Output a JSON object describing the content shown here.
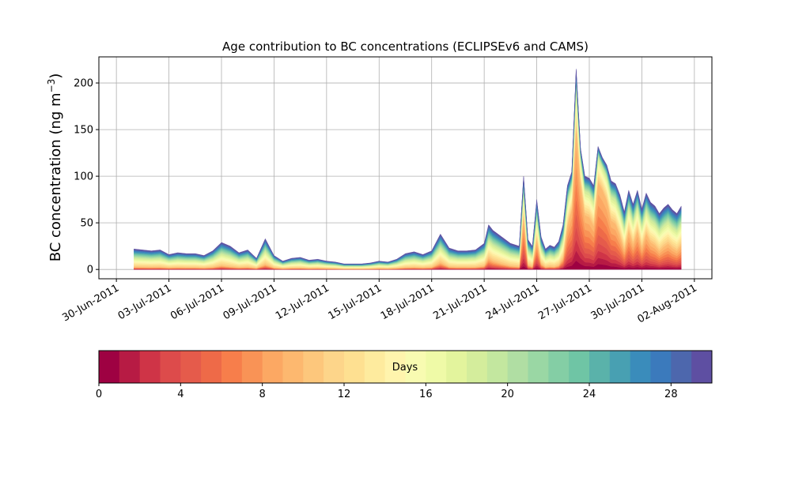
{
  "chart_data": {
    "type": "area",
    "title": "Age contribution to BC concentrations (ECLIPSEv6 and CAMS)",
    "ylabel": "BC concentration (ng m",
    "ylabel_superscript": "−3",
    "ylabel_close": ")",
    "xlabel": "",
    "grid": true,
    "ylim": [
      -10,
      228
    ],
    "yticks": [
      0,
      50,
      100,
      150,
      200
    ],
    "xlim": [
      "2011-06-29",
      "2011-08-03"
    ],
    "xticks": [
      {
        "date": "2011-06-30",
        "label": "30-Jun-2011"
      },
      {
        "date": "2011-07-03",
        "label": "03-Jul-2011"
      },
      {
        "date": "2011-07-06",
        "label": "06-Jul-2011"
      },
      {
        "date": "2011-07-09",
        "label": "09-Jul-2011"
      },
      {
        "date": "2011-07-12",
        "label": "12-Jul-2011"
      },
      {
        "date": "2011-07-15",
        "label": "15-Jul-2011"
      },
      {
        "date": "2011-07-18",
        "label": "18-Jul-2011"
      },
      {
        "date": "2011-07-21",
        "label": "21-Jul-2011"
      },
      {
        "date": "2011-07-24",
        "label": "24-Jul-2011"
      },
      {
        "date": "2011-07-27",
        "label": "27-Jul-2011"
      },
      {
        "date": "2011-07-30",
        "label": "30-Jul-2011"
      },
      {
        "date": "2011-08-02",
        "label": "02-Aug-2011"
      }
    ],
    "total_series": {
      "x": [
        "2011-07-01 00:00",
        "2011-07-01 12:00",
        "2011-07-02 00:00",
        "2011-07-02 12:00",
        "2011-07-03 00:00",
        "2011-07-03 12:00",
        "2011-07-04 00:00",
        "2011-07-04 12:00",
        "2011-07-05 00:00",
        "2011-07-05 12:00",
        "2011-07-06 00:00",
        "2011-07-06 12:00",
        "2011-07-07 00:00",
        "2011-07-07 12:00",
        "2011-07-08 00:00",
        "2011-07-08 12:00",
        "2011-07-09 00:00",
        "2011-07-09 12:00",
        "2011-07-10 00:00",
        "2011-07-10 12:00",
        "2011-07-11 00:00",
        "2011-07-11 12:00",
        "2011-07-12 00:00",
        "2011-07-12 12:00",
        "2011-07-13 00:00",
        "2011-07-13 12:00",
        "2011-07-14 00:00",
        "2011-07-14 12:00",
        "2011-07-15 00:00",
        "2011-07-15 12:00",
        "2011-07-16 00:00",
        "2011-07-16 12:00",
        "2011-07-17 00:00",
        "2011-07-17 12:00",
        "2011-07-18 00:00",
        "2011-07-18 12:00",
        "2011-07-19 00:00",
        "2011-07-19 12:00",
        "2011-07-20 00:00",
        "2011-07-20 12:00",
        "2011-07-21 00:00",
        "2011-07-21 06:00",
        "2011-07-21 12:00",
        "2011-07-22 00:00",
        "2011-07-22 12:00",
        "2011-07-23 00:00",
        "2011-07-23 06:00",
        "2011-07-23 12:00",
        "2011-07-23 18:00",
        "2011-07-24 00:00",
        "2011-07-24 06:00",
        "2011-07-24 12:00",
        "2011-07-24 18:00",
        "2011-07-25 00:00",
        "2011-07-25 06:00",
        "2011-07-25 12:00",
        "2011-07-25 18:00",
        "2011-07-26 00:00",
        "2011-07-26 06:00",
        "2011-07-26 12:00",
        "2011-07-26 18:00",
        "2011-07-27 00:00",
        "2011-07-27 06:00",
        "2011-07-27 12:00",
        "2011-07-27 18:00",
        "2011-07-28 00:00",
        "2011-07-28 06:00",
        "2011-07-28 12:00",
        "2011-07-28 18:00",
        "2011-07-29 00:00",
        "2011-07-29 06:00",
        "2011-07-29 12:00",
        "2011-07-29 18:00",
        "2011-07-30 00:00",
        "2011-07-30 06:00",
        "2011-07-30 12:00",
        "2011-07-30 18:00",
        "2011-07-31 00:00",
        "2011-07-31 06:00",
        "2011-07-31 12:00",
        "2011-07-31 18:00",
        "2011-08-01 00:00",
        "2011-08-01 06:00"
      ],
      "y": [
        22,
        21,
        20,
        21,
        16,
        18,
        17,
        17,
        15,
        20,
        29,
        25,
        18,
        21,
        12,
        33,
        15,
        9,
        12,
        13,
        10,
        11,
        9,
        8,
        6,
        6,
        6,
        7,
        9,
        8,
        11,
        17,
        19,
        16,
        20,
        38,
        23,
        20,
        20,
        21,
        28,
        48,
        42,
        35,
        28,
        25,
        100,
        32,
        25,
        75,
        35,
        22,
        26,
        24,
        30,
        48,
        90,
        105,
        215,
        130,
        100,
        98,
        90,
        132,
        120,
        112,
        95,
        92,
        80,
        62,
        85,
        70,
        85,
        65,
        82,
        72,
        68,
        60,
        66,
        70,
        64,
        60,
        68
      ]
    },
    "colorbar": {
      "label": "Days",
      "min": 0,
      "max": 30,
      "ticks": [
        0,
        4,
        8,
        12,
        16,
        20,
        24,
        28
      ],
      "colors": [
        "#9e0142",
        "#b71b44",
        "#cf3447",
        "#dd4b4b",
        "#e55b4b",
        "#ee6a48",
        "#f77e4b",
        "#f99356",
        "#fca863",
        "#fdb86f",
        "#fdc77c",
        "#fdd58a",
        "#fee091",
        "#feeb9e",
        "#fff4ad",
        "#f8fbb1",
        "#effaa7",
        "#e3f49d",
        "#d4ed9c",
        "#c3e79f",
        "#b0dea3",
        "#9ad7a4",
        "#84cea5",
        "#6fc5a5",
        "#5ab2aa",
        "#48a0b2",
        "#3a8cbb",
        "#3b7abc",
        "#4d67ad",
        "#5e4fa2"
      ]
    }
  }
}
